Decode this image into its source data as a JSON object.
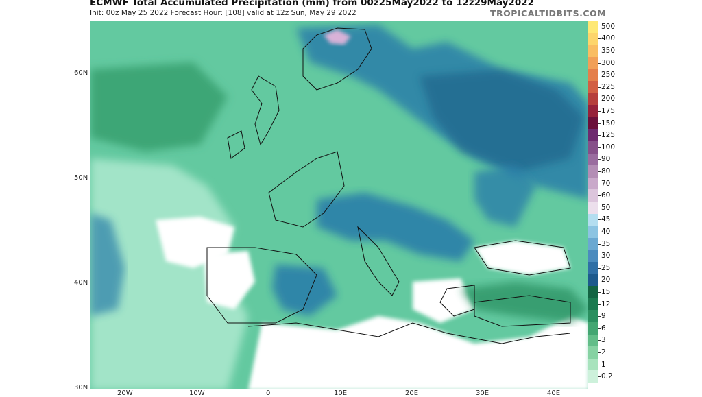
{
  "header": {
    "title": "ECMWF Total Accumulated Precipitation (mm) from 00z25May2022 to 12z29May2022",
    "subtitle": "Init: 00z May 25 2022   Forecast Hour: [108]   valid at 12z Sun, May 29 2022",
    "brand": "TROPICALTIDBITS.COM"
  },
  "map": {
    "lat_labels": [
      "60N",
      "50N",
      "40N",
      "30N"
    ],
    "lon_labels": [
      "20W",
      "10W",
      "0",
      "10E",
      "20E",
      "30E",
      "40E"
    ],
    "colors": {
      "sea_light": "#9fe3c6",
      "land_medium": "#63c9a0",
      "wet_green": "#2e9466",
      "dark_green": "#1c6e4a",
      "blue": "#2c7fa9",
      "deep_blue": "#1e5f87",
      "pink": "#d9b2d8",
      "dry": "#ffffff"
    }
  },
  "colorbar": {
    "levels": [
      "500",
      "400",
      "350",
      "300",
      "250",
      "225",
      "200",
      "175",
      "150",
      "125",
      "100",
      "90",
      "80",
      "70",
      "60",
      "50",
      "45",
      "40",
      "35",
      "30",
      "25",
      "20",
      "15",
      "12",
      "9",
      "6",
      "3",
      "2",
      "1",
      "0.2"
    ],
    "colors": [
      "#fee874",
      "#fdd56b",
      "#f9bd62",
      "#f19f57",
      "#e47f4b",
      "#d25f43",
      "#b63e3b",
      "#96213a",
      "#6b0f3a",
      "#6e2a6f",
      "#865089",
      "#9a6c9f",
      "#b38db5",
      "#c9a9ca",
      "#dcc5dc",
      "#ecdfec",
      "#b4def0",
      "#8cc4e2",
      "#6aa8d1",
      "#4b8bbe",
      "#2f6fa6",
      "#1d5a8d",
      "#136443",
      "#1b7a50",
      "#2a8f5f",
      "#43a672",
      "#62bd88",
      "#86d2a2",
      "#a8e3bd",
      "#cdf1db"
    ]
  }
}
